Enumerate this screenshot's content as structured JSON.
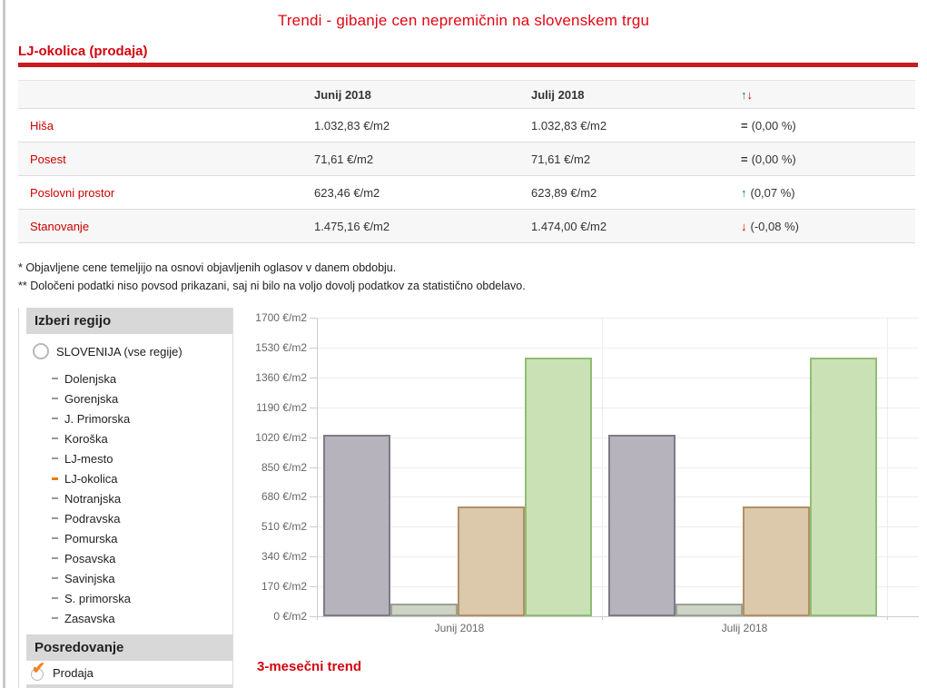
{
  "page": {
    "title": "Trendi - gibanje cen nepremičnin na slovenskem trgu"
  },
  "section": {
    "heading": "LJ-okolica (prodaja)"
  },
  "table": {
    "columns": {
      "label": "",
      "month1": "Junij 2018",
      "month2": "Julij 2018"
    },
    "trend_icons": {
      "up": "↑",
      "down": "↓",
      "eq": "="
    },
    "rows": [
      {
        "label": "Hiša",
        "month1": "1.032,83 €/m2",
        "month2": "1.032,83 €/m2",
        "trend": "eq",
        "change": "(0,00 %)"
      },
      {
        "label": "Posest",
        "month1": "71,61 €/m2",
        "month2": "71,61 €/m2",
        "trend": "eq",
        "change": "(0,00 %)"
      },
      {
        "label": "Poslovni prostor",
        "month1": "623,46 €/m2",
        "month2": "623,89 €/m2",
        "trend": "up",
        "change": "(0,07 %)"
      },
      {
        "label": "Stanovanje",
        "month1": "1.475,16 €/m2",
        "month2": "1.474,00 €/m2",
        "trend": "down",
        "change": "(-0,08 %)"
      }
    ]
  },
  "footnotes": [
    "* Objavljene cene temeljijo na osnovi objavljenih oglasov v danem obdobju.",
    "** Določeni podatki niso povsod prikazani, saj ni bilo na voljo dovolj podatkov za statistično obdelavo."
  ],
  "sidebar": {
    "region_header": "Izberi regijo",
    "radio_label": "SLOVENIJA (vse regije)",
    "regions": [
      {
        "label": "Dolenjska",
        "selected": false
      },
      {
        "label": "Gorenjska",
        "selected": false
      },
      {
        "label": "J. Primorska",
        "selected": false
      },
      {
        "label": "Koroška",
        "selected": false
      },
      {
        "label": "LJ-mesto",
        "selected": false
      },
      {
        "label": "LJ-okolica",
        "selected": true
      },
      {
        "label": "Notranjska",
        "selected": false
      },
      {
        "label": "Podravska",
        "selected": false
      },
      {
        "label": "Pomurska",
        "selected": false
      },
      {
        "label": "Posavska",
        "selected": false
      },
      {
        "label": "Savinjska",
        "selected": false
      },
      {
        "label": "S. primorska",
        "selected": false
      },
      {
        "label": "Zasavska",
        "selected": false
      }
    ],
    "mediation_header": "Posredovanje",
    "mediation_options": [
      {
        "label": "Prodaja",
        "checked": true
      }
    ]
  },
  "trend_heading": "3-mesečni trend",
  "colors": {
    "title_red": "#e30613",
    "heading_red": "#d30510",
    "link_red": "#cc0001",
    "arrow_green": "#1b7e49",
    "arrow_red": "#cc0000",
    "selected_dash_orange": "#f07c00",
    "check_orange": "#f5821f"
  },
  "chart_data": {
    "type": "bar",
    "categories": [
      "Junij 2018",
      "Julij 2018"
    ],
    "series": [
      {
        "name": "Hiša",
        "values": [
          1032.83,
          1032.83
        ],
        "fill": "#b6b3bc",
        "border": "#7e7b87"
      },
      {
        "name": "Posest",
        "values": [
          71.61,
          71.61
        ],
        "fill": "#cdd3c5",
        "border": "#9aa295"
      },
      {
        "name": "Poslovni prostor",
        "values": [
          623.46,
          623.89
        ],
        "fill": "#dcc8ab",
        "border": "#b29064"
      },
      {
        "name": "Stanovanje",
        "values": [
          1475.16,
          1474.0
        ],
        "fill": "#c9e1b4",
        "border": "#90bd74"
      }
    ],
    "yticks": [
      0,
      170,
      340,
      510,
      680,
      850,
      1020,
      1190,
      1360,
      1530,
      1700
    ],
    "ylim": [
      0,
      1700
    ],
    "ytick_suffix": " €/m2",
    "grid": true,
    "legend": "none",
    "title": "",
    "xlabel": "",
    "ylabel": ""
  }
}
